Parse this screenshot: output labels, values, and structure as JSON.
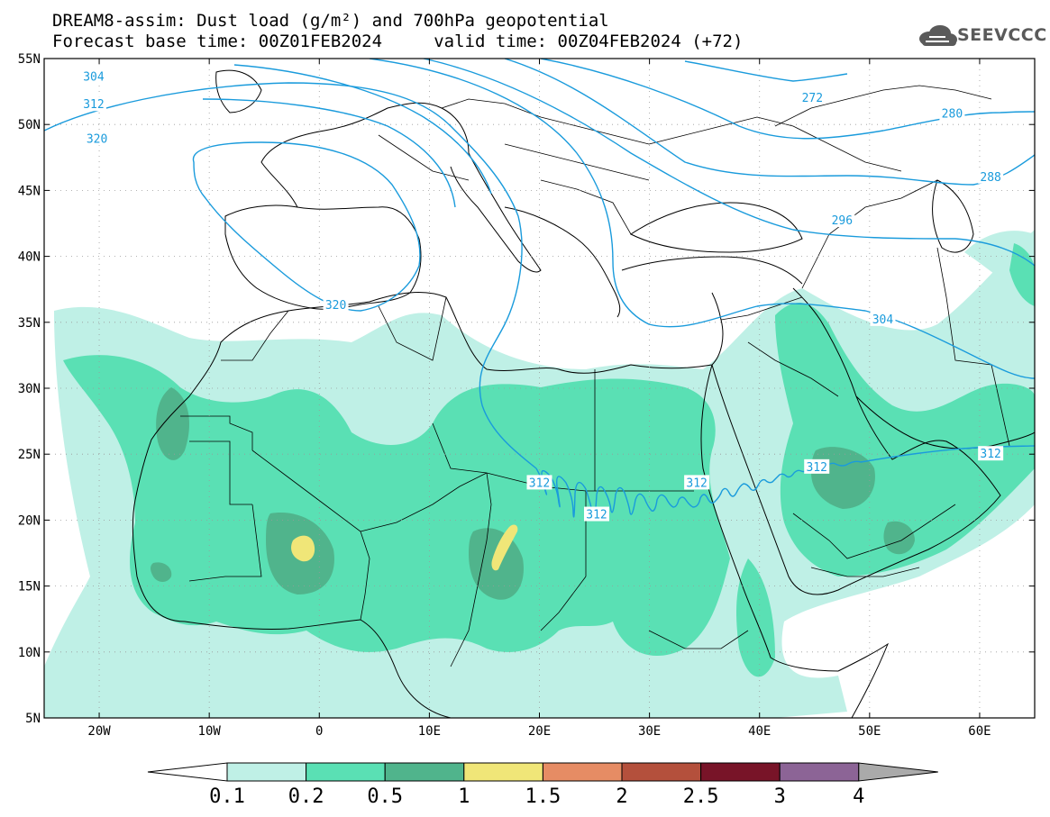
{
  "title": {
    "line1": "DREAM8-assim: Dust load (g/m²) and 700hPa geopotential",
    "line2": "Forecast base time: 00Z01FEB2024     valid time: 00Z04FEB2024 (+72)"
  },
  "logo": {
    "text": "SEEVCCC",
    "icon": "cloud-icon",
    "color": "#5a5a5a"
  },
  "map": {
    "lon_range": [
      -25,
      65
    ],
    "lat_range": [
      5,
      55
    ],
    "lat_ticks": [
      {
        "value": 55,
        "label": "55N"
      },
      {
        "value": 50,
        "label": "50N"
      },
      {
        "value": 45,
        "label": "45N"
      },
      {
        "value": 40,
        "label": "40N"
      },
      {
        "value": 35,
        "label": "35N"
      },
      {
        "value": 30,
        "label": "30N"
      },
      {
        "value": 25,
        "label": "25N"
      },
      {
        "value": 20,
        "label": "20N"
      },
      {
        "value": 15,
        "label": "15N"
      },
      {
        "value": 10,
        "label": "10N"
      },
      {
        "value": 5,
        "label": "5N"
      }
    ],
    "lon_ticks": [
      {
        "value": -20,
        "label": "20W"
      },
      {
        "value": -10,
        "label": "10W"
      },
      {
        "value": 0,
        "label": "0"
      },
      {
        "value": 10,
        "label": "10E"
      },
      {
        "value": 20,
        "label": "20E"
      },
      {
        "value": 30,
        "label": "30E"
      },
      {
        "value": 40,
        "label": "40E"
      },
      {
        "value": 50,
        "label": "50E"
      },
      {
        "value": 60,
        "label": "60E"
      }
    ],
    "grid": true,
    "contour_color": "#1a9bdc",
    "contour_labels": [
      {
        "text": "304",
        "lon": -20.5,
        "lat": 53.6
      },
      {
        "text": "312",
        "lon": -20.5,
        "lat": 51.5
      },
      {
        "text": "320",
        "lon": -20.2,
        "lat": 48.9
      },
      {
        "text": "320",
        "lon": 1.5,
        "lat": 36.3
      },
      {
        "text": "312",
        "lon": 20.0,
        "lat": 22.8
      },
      {
        "text": "312",
        "lon": 25.2,
        "lat": 20.4
      },
      {
        "text": "312",
        "lon": 34.3,
        "lat": 22.8
      },
      {
        "text": "312",
        "lon": 45.2,
        "lat": 24.0
      },
      {
        "text": "312",
        "lon": 61.0,
        "lat": 25.0
      },
      {
        "text": "304",
        "lon": 51.2,
        "lat": 35.2
      },
      {
        "text": "296",
        "lon": 47.5,
        "lat": 42.7
      },
      {
        "text": "288",
        "lon": 61.0,
        "lat": 46.0
      },
      {
        "text": "280",
        "lon": 57.5,
        "lat": 50.8
      },
      {
        "text": "272",
        "lon": 44.8,
        "lat": 52.0
      }
    ]
  },
  "colorbar": {
    "ticks": [
      "0.1",
      "0.2",
      "0.5",
      "1",
      "1.5",
      "2",
      "2.5",
      "3",
      "4"
    ],
    "colors": [
      "#ffffff",
      "#bff0e6",
      "#5ae0b4",
      "#50b48c",
      "#f0e678",
      "#e68c64",
      "#b4503c",
      "#781428",
      "#8c6496",
      "#aaaaaa"
    ]
  }
}
